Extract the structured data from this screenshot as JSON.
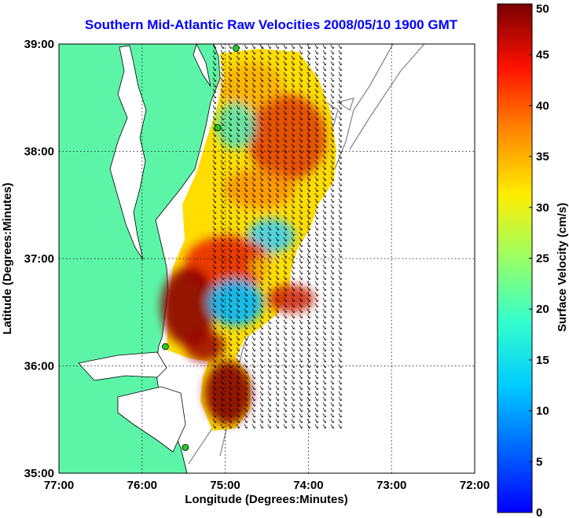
{
  "title": "Southern Mid-Atlantic Raw Velocities 2008/05/10 1900 GMT",
  "map": {
    "xlabel": "Longitude (Degrees:Minutes)",
    "ylabel": "Latitude (Degrees:Minutes)",
    "x_ticks": [
      "77:00",
      "76:00",
      "75:00",
      "74:00",
      "73:00",
      "72:00"
    ],
    "y_ticks": [
      "39:00",
      "38:00",
      "37:00",
      "36:00",
      "35:00"
    ],
    "lon_range": [
      -77,
      -72
    ],
    "lat_range": [
      35,
      39
    ],
    "grid": "dotted",
    "land_color": "#5cf5a8",
    "station_color": "#22cc22",
    "stations": [
      {
        "lon": -74.87,
        "lat": 38.96
      },
      {
        "lon": -75.09,
        "lat": 38.22
      },
      {
        "lon": -75.72,
        "lat": 36.18
      },
      {
        "lon": -75.48,
        "lat": 35.24
      }
    ]
  },
  "colorbar": {
    "label": "Surface Velocity (cm/s)",
    "range": [
      0,
      50
    ],
    "ticks": [
      "0",
      "5",
      "10",
      "15",
      "20",
      "25",
      "30",
      "35",
      "40",
      "45",
      "50"
    ],
    "colormap": "jet"
  }
}
